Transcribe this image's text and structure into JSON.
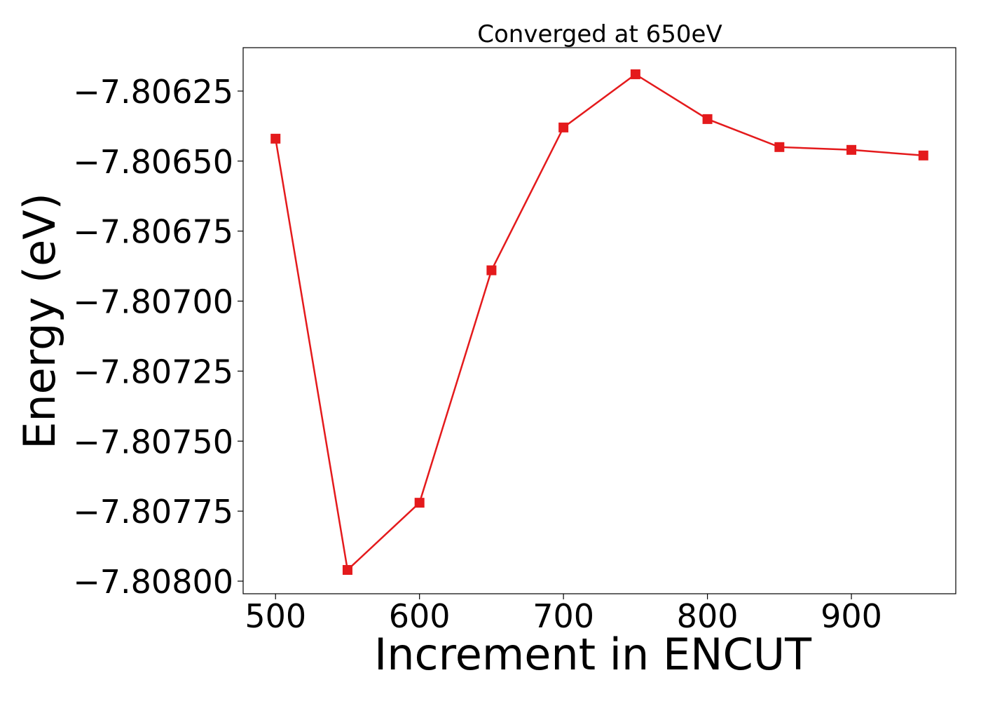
{
  "chart_data": {
    "type": "line",
    "title": "Converged at 650eV",
    "xlabel": "Increment in ENCUT",
    "ylabel": "Energy (eV)",
    "x": [
      500,
      550,
      600,
      650,
      700,
      750,
      800,
      850,
      900,
      950
    ],
    "series": [
      {
        "values": [
          -7.80642,
          -7.80796,
          -7.80772,
          -7.80689,
          -7.80638,
          -7.80619,
          -7.80635,
          -7.80645,
          -7.80646,
          -7.80648
        ],
        "color": "#e41a1c",
        "marker": "square"
      }
    ],
    "xticks": [
      500,
      600,
      700,
      800,
      900
    ],
    "xtick_labels": [
      "500",
      "600",
      "700",
      "800",
      "900"
    ],
    "yticks": [
      -7.80625,
      -7.8065,
      -7.80675,
      -7.807,
      -7.80725,
      -7.8075,
      -7.80775,
      -7.808
    ],
    "ytick_labels": [
      "−7.80625",
      "−7.80650",
      "−7.80675",
      "−7.80700",
      "−7.80725",
      "−7.80750",
      "−7.80775",
      "−7.80800"
    ],
    "xlim": [
      477.5,
      972.5
    ],
    "ylim": [
      -7.808045,
      -7.806095
    ],
    "grid": false,
    "legend": "none"
  }
}
